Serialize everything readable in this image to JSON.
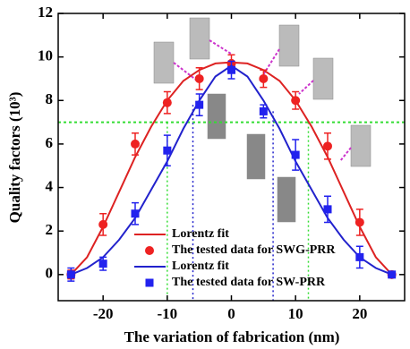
{
  "chart_data": {
    "type": "line",
    "xlabel": "The variation of fabrication (nm)",
    "ylabel": "Quality factors (10³)",
    "xlim": [
      -27,
      27
    ],
    "xticks": [
      -20,
      -10,
      0,
      10,
      20
    ],
    "ylim": [
      -1.2,
      12
    ],
    "yticks": [
      0,
      2,
      4,
      6,
      8,
      10,
      12
    ],
    "hlines": [
      {
        "value": 7,
        "color": "#33dd33"
      }
    ],
    "vlines": [
      {
        "x": -10,
        "y": 7,
        "color": "#33dd33"
      },
      {
        "x": 12,
        "y": 7,
        "color": "#33dd33"
      },
      {
        "x": -6,
        "y": 7.8,
        "color": "#2222cc"
      },
      {
        "x": 6.5,
        "y": 7.5,
        "color": "#2222cc"
      }
    ],
    "series": [
      {
        "name": "Lorentz fit",
        "mode": "line",
        "color": "#dd2222",
        "x": [
          -25,
          -22.5,
          -20,
          -17.5,
          -15,
          -12.5,
          -10,
          -7.5,
          -5,
          -2.5,
          0,
          2.5,
          5,
          7.5,
          10,
          12.5,
          15,
          17.5,
          20,
          22.5,
          25
        ],
        "values": [
          0,
          0.8,
          2.2,
          3.8,
          5.4,
          6.8,
          8.0,
          8.9,
          9.4,
          9.7,
          9.75,
          9.7,
          9.4,
          8.9,
          8.0,
          6.8,
          5.4,
          3.8,
          2.2,
          0.8,
          0
        ]
      },
      {
        "name": "The tested data for SWG-PRR",
        "mode": "markers",
        "marker": "circle",
        "color": "#ee2222",
        "x": [
          -25,
          -20,
          -15,
          -10,
          -5,
          0,
          5,
          10,
          15,
          20,
          25
        ],
        "values": [
          0,
          2.3,
          6.0,
          7.9,
          9.0,
          9.7,
          9.0,
          8.0,
          5.9,
          2.4,
          0
        ],
        "errors": [
          0.2,
          0.5,
          0.5,
          0.5,
          0.5,
          0.4,
          0.4,
          0.4,
          0.6,
          0.6,
          0.1
        ]
      },
      {
        "name": "Lorentz fit",
        "mode": "line",
        "color": "#2222cc",
        "x": [
          -25,
          -22.5,
          -20,
          -17.5,
          -15,
          -12.5,
          -10,
          -7.5,
          -5,
          -2.5,
          0,
          2.5,
          5,
          7.5,
          10,
          12.5,
          15,
          17.5,
          20,
          22.5,
          25
        ],
        "values": [
          0,
          0.3,
          0.8,
          1.6,
          2.6,
          3.9,
          5.2,
          6.7,
          8.0,
          9.1,
          9.6,
          9.1,
          8.0,
          6.7,
          5.2,
          3.9,
          2.6,
          1.6,
          0.8,
          0.3,
          0
        ]
      },
      {
        "name": "The tested data for SW-PRR",
        "mode": "markers",
        "marker": "square",
        "color": "#2222ee",
        "x": [
          -25,
          -20,
          -15,
          -10,
          -5,
          0,
          5,
          10,
          15,
          20,
          25
        ],
        "values": [
          0,
          0.5,
          2.8,
          5.7,
          7.8,
          9.4,
          7.5,
          5.5,
          3.0,
          0.8,
          0
        ],
        "errors": [
          0.3,
          0.3,
          0.5,
          0.7,
          0.5,
          0.4,
          0.3,
          0.7,
          0.6,
          0.5,
          0.1
        ]
      }
    ]
  }
}
